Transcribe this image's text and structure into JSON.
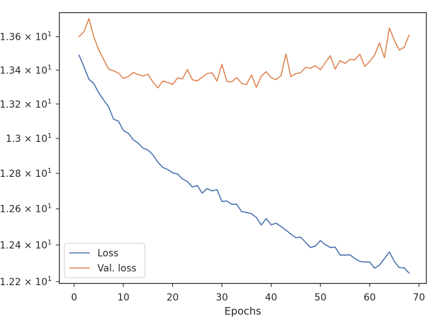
{
  "chart_data": {
    "type": "line",
    "xlabel": "Epochs",
    "ylabel": "",
    "xlim": [
      -3,
      71.5
    ],
    "ylim": [
      12.19,
      13.746
    ],
    "y_scale": "log",
    "grid": false,
    "legend_position": "lower-left",
    "x_ticks": [
      {
        "value": 0,
        "label": "0"
      },
      {
        "value": 10,
        "label": "10"
      },
      {
        "value": 20,
        "label": "20"
      },
      {
        "value": 30,
        "label": "30"
      },
      {
        "value": 40,
        "label": "40"
      },
      {
        "value": 50,
        "label": "50"
      },
      {
        "value": 60,
        "label": "60"
      },
      {
        "value": 70,
        "label": "70"
      }
    ],
    "y_ticks": [
      {
        "value": 12.2,
        "mantissa": "1.22",
        "exponent": "1"
      },
      {
        "value": 12.4,
        "mantissa": "1.24",
        "exponent": "1"
      },
      {
        "value": 12.6,
        "mantissa": "1.26",
        "exponent": "1"
      },
      {
        "value": 12.8,
        "mantissa": "1.28",
        "exponent": "1"
      },
      {
        "value": 13.0,
        "mantissa": "1.3",
        "exponent": "1"
      },
      {
        "value": 13.2,
        "mantissa": "1.32",
        "exponent": "1"
      },
      {
        "value": 13.4,
        "mantissa": "1.34",
        "exponent": "1"
      },
      {
        "value": 13.6,
        "mantissa": "1.36",
        "exponent": "1"
      }
    ],
    "tick_times": "×",
    "tick_base": "10",
    "x": [
      1,
      2,
      3,
      4,
      5,
      6,
      7,
      8,
      9,
      10,
      11,
      12,
      13,
      14,
      15,
      16,
      17,
      18,
      19,
      20,
      21,
      22,
      23,
      24,
      25,
      26,
      27,
      28,
      29,
      30,
      31,
      32,
      33,
      34,
      35,
      36,
      37,
      38,
      39,
      40,
      41,
      42,
      43,
      44,
      45,
      46,
      47,
      48,
      49,
      50,
      51,
      52,
      53,
      54,
      55,
      56,
      57,
      58,
      59,
      60,
      61,
      62,
      63,
      64,
      65,
      66,
      67,
      68
    ],
    "series": [
      {
        "name": "Loss",
        "color": "#4c72b0",
        "values": [
          13.49,
          13.42,
          13.346,
          13.32,
          13.266,
          13.223,
          13.184,
          13.112,
          13.1,
          13.046,
          13.03,
          12.993,
          12.973,
          12.944,
          12.933,
          12.906,
          12.864,
          12.834,
          12.822,
          12.803,
          12.797,
          12.768,
          12.754,
          12.723,
          12.731,
          12.688,
          12.714,
          12.701,
          12.708,
          12.642,
          12.644,
          12.626,
          12.626,
          12.585,
          12.58,
          12.573,
          12.552,
          12.51,
          12.546,
          12.511,
          12.52,
          12.502,
          12.482,
          12.46,
          12.44,
          12.443,
          12.414,
          12.386,
          12.394,
          12.424,
          12.402,
          12.386,
          12.388,
          12.344,
          12.344,
          12.346,
          12.325,
          12.31,
          12.306,
          12.306,
          12.273,
          12.29,
          12.325,
          12.362,
          12.31,
          12.276,
          12.275,
          12.246
        ]
      },
      {
        "name": "Val. loss",
        "color": "#dd8452",
        "values": [
          13.6,
          13.63,
          13.71,
          13.6,
          13.52,
          13.464,
          13.406,
          13.396,
          13.383,
          13.351,
          13.361,
          13.386,
          13.374,
          13.365,
          13.376,
          13.329,
          13.295,
          13.335,
          13.327,
          13.315,
          13.354,
          13.348,
          13.404,
          13.343,
          13.336,
          13.358,
          13.38,
          13.385,
          13.335,
          13.435,
          13.333,
          13.33,
          13.356,
          13.322,
          13.314,
          13.372,
          13.298,
          13.364,
          13.391,
          13.355,
          13.344,
          13.367,
          13.497,
          13.362,
          13.379,
          13.385,
          13.417,
          13.411,
          13.427,
          13.402,
          13.445,
          13.486,
          13.406,
          13.457,
          13.44,
          13.464,
          13.462,
          13.495,
          13.422,
          13.451,
          13.49,
          13.563,
          13.474,
          13.652,
          13.58,
          13.52,
          13.536,
          13.61
        ]
      }
    ]
  }
}
